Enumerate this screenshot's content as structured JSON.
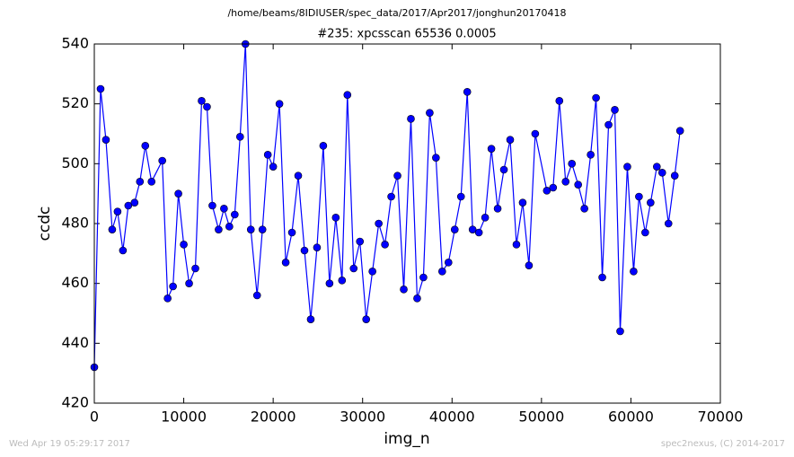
{
  "chart_data": {
    "type": "line",
    "title": "/home/beams/8IDIUSER/spec_data/2017/Apr2017/jonghun20170418",
    "subtitle": "#235: xpcsscan 65536 0.0005",
    "xlabel": "img_n",
    "ylabel": "ccdc",
    "footer_left": "Wed Apr 19 05:29:17 2017",
    "footer_right": "spec2nexus, (C) 2014-2017",
    "color": "#0000ff",
    "x": [
      0,
      700,
      1300,
      2000,
      2600,
      3200,
      3800,
      4500,
      5100,
      5700,
      6400,
      7600,
      8200,
      8800,
      9400,
      10000,
      10600,
      11300,
      12000,
      12600,
      13200,
      13900,
      14500,
      15100,
      15700,
      16300,
      16900,
      17500,
      18200,
      18800,
      19400,
      20000,
      20700,
      21400,
      22100,
      22800,
      23500,
      24200,
      24900,
      25600,
      26300,
      27000,
      27700,
      28300,
      29000,
      29700,
      30400,
      31100,
      31800,
      32500,
      33200,
      33900,
      34600,
      35400,
      36100,
      36800,
      37500,
      38200,
      38900,
      39600,
      40300,
      41000,
      41700,
      42300,
      43000,
      43700,
      44400,
      45100,
      45800,
      46500,
      47200,
      47900,
      48600,
      49300,
      50600,
      51300,
      52000,
      52700,
      53400,
      54100,
      54800,
      55500,
      56100,
      56800,
      57500,
      58200,
      58800,
      59600,
      60300,
      60900,
      61600,
      62200,
      62900,
      63500,
      64200,
      64900,
      65500
    ],
    "values": [
      432,
      525,
      508,
      478,
      484,
      471,
      486,
      487,
      494,
      506,
      494,
      501,
      455,
      459,
      490,
      473,
      460,
      465,
      521,
      519,
      486,
      478,
      485,
      479,
      483,
      509,
      540,
      478,
      456,
      478,
      503,
      499,
      520,
      467,
      477,
      496,
      471,
      448,
      472,
      506,
      460,
      482,
      461,
      523,
      465,
      474,
      448,
      464,
      480,
      473,
      489,
      496,
      458,
      515,
      455,
      462,
      517,
      502,
      464,
      467,
      478,
      489,
      524,
      478,
      477,
      482,
      505,
      485,
      498,
      508,
      473,
      487,
      466,
      510,
      491,
      492,
      521,
      494,
      500,
      493,
      485,
      503,
      522,
      462,
      513,
      518,
      444,
      499,
      464,
      489,
      477,
      487,
      499,
      497,
      480,
      496,
      511
    ],
    "xlim": [
      0,
      70000
    ],
    "xticks": [
      0,
      10000,
      20000,
      30000,
      40000,
      50000,
      60000,
      70000
    ],
    "ylim": [
      420,
      540
    ],
    "yticks": [
      420,
      440,
      460,
      480,
      500,
      520,
      540
    ]
  }
}
